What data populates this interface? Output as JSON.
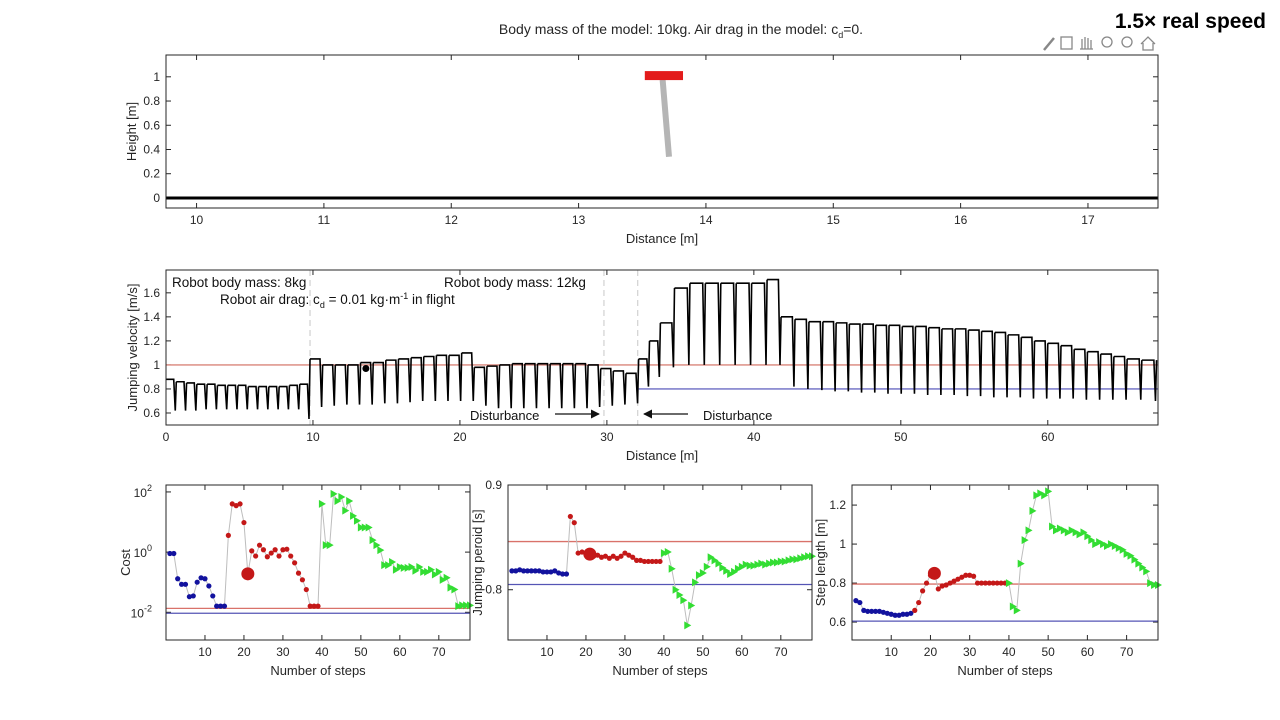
{
  "speed_label": "1.5× real speed",
  "chart_data": [
    {
      "type": "animation",
      "title": [
        "Body mass of the model: 10kg. Air drag in the model: c",
        "d",
        "=0."
      ],
      "xlabel": "Distance [m]",
      "ylabel": "Height [m]",
      "xlim": [
        9.76,
        17.55
      ],
      "ylim": [
        -0.083,
        1.18
      ],
      "xticks": [
        10,
        11,
        12,
        13,
        14,
        15,
        16,
        17
      ],
      "yticks": [
        0,
        0.2,
        0.4,
        0.6,
        0.8,
        1
      ],
      "ground": 0,
      "ground_color": "#000000",
      "body": {
        "x": [
          13.52,
          13.82
        ],
        "y": 1.01,
        "color": "#e31b1b"
      },
      "leg": {
        "x": [
          13.66,
          13.71
        ],
        "y": [
          0.975,
          0.34
        ],
        "color": "#b5b5b5"
      }
    },
    {
      "type": "sawtooth",
      "xlabel": "Distance [m]",
      "ylabel": "Jumping velocity [m/s]",
      "xlim": [
        0,
        67.5
      ],
      "ylim": [
        0.5,
        1.79
      ],
      "xticks": [
        0,
        10,
        20,
        30,
        40,
        50,
        60
      ],
      "yticks": [
        0.6,
        0.8,
        1,
        1.2,
        1.4,
        1.6
      ],
      "color": "#000000",
      "step_edges": [
        0,
        0.7,
        1.4,
        2.1,
        2.8,
        3.5,
        4.2,
        4.9,
        5.6,
        6.3,
        7.0,
        7.7,
        8.4,
        9.1,
        9.8,
        10.66,
        11.52,
        12.38,
        13.24,
        14.1,
        14.96,
        15.82,
        16.68,
        17.54,
        18.4,
        19.26,
        20.12,
        20.98,
        21.84,
        22.7,
        23.56,
        24.42,
        25.28,
        26.14,
        27.0,
        27.86,
        28.72,
        29.58,
        30.44,
        31.3,
        32.16,
        32.9,
        33.64,
        34.6,
        35.65,
        36.7,
        37.75,
        38.8,
        39.85,
        40.9,
        41.85,
        42.8,
        43.75,
        44.7,
        45.6,
        46.5,
        47.4,
        48.3,
        49.2,
        50.1,
        51.0,
        51.9,
        52.8,
        53.7,
        54.6,
        55.5,
        56.4,
        57.3,
        58.2,
        59.1,
        60.0,
        60.9,
        61.8,
        62.7,
        63.6,
        64.5,
        65.4,
        66.4,
        67.4
      ],
      "peaks": [
        0.88,
        0.86,
        0.85,
        0.84,
        0.84,
        0.83,
        0.83,
        0.83,
        0.82,
        0.82,
        0.82,
        0.82,
        0.83,
        0.84,
        1.05,
        1.0,
        1.0,
        1.0,
        1.02,
        1.02,
        1.04,
        1.05,
        1.06,
        1.07,
        1.08,
        1.08,
        1.1,
        0.98,
        0.99,
        1.0,
        1.01,
        1.01,
        1.01,
        1.01,
        1.01,
        1.01,
        1.0,
        0.97,
        0.95,
        0.93,
        1.05,
        1.2,
        1.35,
        1.64,
        1.68,
        1.68,
        1.68,
        1.68,
        1.68,
        1.71,
        1.4,
        1.38,
        1.36,
        1.36,
        1.35,
        1.34,
        1.34,
        1.33,
        1.33,
        1.32,
        1.32,
        1.31,
        1.3,
        1.3,
        1.29,
        1.28,
        1.27,
        1.25,
        1.23,
        1.2,
        1.18,
        1.16,
        1.13,
        1.11,
        1.09,
        1.07,
        1.05,
        1.04
      ],
      "troughs": [
        0.62,
        0.62,
        0.62,
        0.63,
        0.63,
        0.63,
        0.63,
        0.63,
        0.63,
        0.63,
        0.63,
        0.63,
        0.63,
        0.55,
        0.65,
        0.66,
        0.67,
        0.67,
        0.67,
        0.68,
        0.68,
        0.69,
        0.7,
        0.7,
        0.7,
        0.7,
        0.7,
        0.66,
        0.64,
        0.64,
        0.64,
        0.64,
        0.64,
        0.64,
        0.64,
        0.64,
        0.65,
        0.66,
        0.67,
        0.68,
        0.82,
        0.9,
        0.98,
        1.0,
        1.0,
        1.0,
        1.0,
        1.0,
        1.0,
        1.0,
        0.82,
        0.8,
        0.79,
        0.78,
        0.78,
        0.77,
        0.77,
        0.76,
        0.76,
        0.76,
        0.75,
        0.75,
        0.75,
        0.74,
        0.74,
        0.73,
        0.73,
        0.73,
        0.72,
        0.72,
        0.72,
        0.72,
        0.71,
        0.71,
        0.71,
        0.71,
        0.71,
        0.7
      ],
      "reference_lines": [
        {
          "y": 1,
          "x": [
            0,
            67.5
          ],
          "color": "#d9857a"
        },
        {
          "y": 0.8,
          "x": [
            32.16,
            67.5
          ],
          "color": "#6b6bc4"
        }
      ],
      "event_lines": [
        9.8,
        29.8,
        32.1
      ],
      "event_color": "#c8c8c8",
      "dot": {
        "x": 13.6,
        "y": 0.97
      },
      "annotations": [
        "Robot body mass: 8kg",
        [
          "Robot air drag:  c",
          "d",
          " = 0.01 kg·m",
          "-1",
          " in flight"
        ],
        "Robot body mass: 12kg",
        "Disturbance",
        "Disturbance"
      ]
    },
    {
      "type": "scatter",
      "yscale": "log",
      "xlabel": "Number of steps",
      "ylabel": "Cost",
      "xlim": [
        0,
        78
      ],
      "ylim": [
        0.0012,
        170
      ],
      "xticks": [
        10,
        20,
        30,
        40,
        50,
        60,
        70
      ],
      "yticks": [
        {
          "value": 0.01,
          "label": "10",
          "exponent": "-2"
        },
        {
          "value": 1,
          "label": "10",
          "exponent": "0"
        },
        {
          "value": 100,
          "label": "10",
          "exponent": "2"
        }
      ],
      "connector_color": "#bdbdbd",
      "highlight_x": 21,
      "reference_lines": [
        {
          "y": 0.0135,
          "color": "#d9726a"
        },
        {
          "y": 0.0093,
          "color": "#5555b5"
        }
      ],
      "series": [
        {
          "color": "#12129e",
          "marker": "circle",
          "x": [
            1,
            2,
            3,
            4,
            5,
            6,
            7,
            8,
            9,
            10,
            11,
            12,
            13,
            14,
            15
          ],
          "values": [
            0.9,
            0.9,
            0.13,
            0.085,
            0.085,
            0.033,
            0.035,
            0.1,
            0.14,
            0.13,
            0.075,
            0.035,
            0.016,
            0.016,
            0.016
          ]
        },
        {
          "color": "#c41818",
          "marker": "circle",
          "x": [
            16,
            17,
            18,
            19,
            20,
            21,
            22,
            23,
            24,
            25,
            26,
            27,
            28,
            29,
            30,
            31,
            32,
            33,
            34,
            35,
            36,
            37,
            38,
            39
          ],
          "values": [
            3.6,
            40,
            35,
            40,
            9.6,
            0.19,
            1.1,
            0.74,
            1.7,
            1.2,
            0.7,
            0.93,
            1.2,
            0.74,
            1.2,
            1.25,
            0.74,
            0.44,
            0.2,
            0.12,
            0.057,
            0.016,
            0.016,
            0.016
          ]
        },
        {
          "color": "#33dd33",
          "marker": "triangle",
          "x": [
            40,
            41,
            42,
            43,
            44,
            45,
            46,
            47,
            48,
            49,
            50,
            51,
            52,
            53,
            54,
            55,
            56,
            57,
            58,
            59,
            60,
            61,
            62,
            63,
            64,
            65,
            66,
            67,
            68,
            69,
            70,
            71,
            72,
            73,
            74,
            75,
            76,
            77,
            78
          ],
          "values": [
            40,
            1.7,
            1.7,
            86,
            50,
            68,
            24,
            50,
            16,
            11,
            6.6,
            6.6,
            6.6,
            2.5,
            1.7,
            1.16,
            0.37,
            0.37,
            0.47,
            0.26,
            0.32,
            0.3,
            0.3,
            0.32,
            0.24,
            0.32,
            0.22,
            0.22,
            0.26,
            0.18,
            0.22,
            0.12,
            0.14,
            0.066,
            0.057,
            0.016,
            0.017,
            0.017,
            0.017
          ]
        }
      ]
    },
    {
      "type": "scatter",
      "xlabel": "Number of steps",
      "ylabel": "Jumping peroid [s]",
      "xlim": [
        0,
        78
      ],
      "ylim": [
        0.752,
        0.9
      ],
      "xticks": [
        10,
        20,
        30,
        40,
        50,
        60,
        70
      ],
      "yticks": [
        0.8,
        0.9
      ],
      "connector_color": "#bdbdbd",
      "highlight_x": 21,
      "reference_lines": [
        {
          "y": 0.846,
          "color": "#d9726a"
        },
        {
          "y": 0.805,
          "color": "#5555b5"
        }
      ],
      "series": [
        {
          "color": "#12129e",
          "marker": "circle",
          "x": [
            1,
            2,
            3,
            4,
            5,
            6,
            7,
            8,
            9,
            10,
            11,
            12,
            13,
            14,
            15
          ],
          "values": [
            0.818,
            0.818,
            0.819,
            0.818,
            0.818,
            0.818,
            0.818,
            0.818,
            0.817,
            0.817,
            0.817,
            0.818,
            0.816,
            0.815,
            0.815
          ]
        },
        {
          "color": "#c41818",
          "marker": "circle",
          "x": [
            16,
            17,
            18,
            19,
            20,
            21,
            22,
            23,
            24,
            25,
            26,
            27,
            28,
            29,
            30,
            31,
            32,
            33,
            34,
            35,
            36,
            37,
            38,
            39
          ],
          "values": [
            0.87,
            0.864,
            0.835,
            0.836,
            0.834,
            0.834,
            0.832,
            0.833,
            0.831,
            0.832,
            0.83,
            0.832,
            0.83,
            0.832,
            0.835,
            0.833,
            0.831,
            0.828,
            0.828,
            0.827,
            0.827,
            0.827,
            0.827,
            0.827
          ]
        },
        {
          "color": "#33dd33",
          "marker": "triangle",
          "x": [
            40,
            41,
            42,
            43,
            44,
            45,
            46,
            47,
            48,
            49,
            50,
            51,
            52,
            53,
            54,
            55,
            56,
            57,
            58,
            59,
            60,
            61,
            62,
            63,
            64,
            65,
            66,
            67,
            68,
            69,
            70,
            71,
            72,
            73,
            74,
            75,
            76,
            77,
            78
          ],
          "values": [
            0.835,
            0.836,
            0.82,
            0.8,
            0.795,
            0.79,
            0.766,
            0.785,
            0.807,
            0.814,
            0.816,
            0.822,
            0.831,
            0.828,
            0.825,
            0.821,
            0.818,
            0.815,
            0.817,
            0.82,
            0.822,
            0.824,
            0.823,
            0.823,
            0.824,
            0.825,
            0.824,
            0.825,
            0.826,
            0.826,
            0.827,
            0.827,
            0.828,
            0.829,
            0.829,
            0.83,
            0.831,
            0.832,
            0.832
          ]
        }
      ]
    },
    {
      "type": "scatter",
      "xlabel": "Number of steps",
      "ylabel": "Step length [m]",
      "xlim": [
        0,
        78
      ],
      "ylim": [
        0.508,
        1.303
      ],
      "xticks": [
        10,
        20,
        30,
        40,
        50,
        60,
        70
      ],
      "yticks": [
        0.6,
        0.8,
        1,
        1.2
      ],
      "connector_color": "#bdbdbd",
      "highlight_x": 21,
      "reference_lines": [
        {
          "y": 0.795,
          "color": "#d9726a"
        },
        {
          "y": 0.605,
          "color": "#5555b5"
        }
      ],
      "series": [
        {
          "color": "#12129e",
          "marker": "circle",
          "x": [
            1,
            2,
            3,
            4,
            5,
            6,
            7,
            8,
            9,
            10,
            11,
            12,
            13,
            14,
            15
          ],
          "values": [
            0.71,
            0.7,
            0.66,
            0.655,
            0.655,
            0.655,
            0.655,
            0.65,
            0.645,
            0.64,
            0.635,
            0.635,
            0.64,
            0.64,
            0.645
          ]
        },
        {
          "color": "#c41818",
          "marker": "circle",
          "x": [
            16,
            17,
            18,
            19,
            20,
            21,
            22,
            23,
            24,
            25,
            26,
            27,
            28,
            29,
            30,
            31,
            32,
            33,
            34,
            35,
            36,
            37,
            38,
            39
          ],
          "values": [
            0.66,
            0.7,
            0.76,
            0.8,
            0.84,
            0.85,
            0.77,
            0.785,
            0.79,
            0.8,
            0.81,
            0.82,
            0.83,
            0.84,
            0.84,
            0.835,
            0.8,
            0.8,
            0.8,
            0.8,
            0.8,
            0.8,
            0.8,
            0.8
          ]
        },
        {
          "color": "#33dd33",
          "marker": "triangle",
          "x": [
            40,
            41,
            42,
            43,
            44,
            45,
            46,
            47,
            48,
            49,
            50,
            51,
            52,
            53,
            54,
            55,
            56,
            57,
            58,
            59,
            60,
            61,
            62,
            63,
            64,
            65,
            66,
            67,
            68,
            69,
            70,
            71,
            72,
            73,
            74,
            75,
            76,
            77,
            78
          ],
          "values": [
            0.8,
            0.68,
            0.66,
            0.9,
            1.02,
            1.07,
            1.17,
            1.25,
            1.26,
            1.25,
            1.27,
            1.09,
            1.07,
            1.08,
            1.07,
            1.06,
            1.07,
            1.06,
            1.05,
            1.06,
            1.04,
            1.02,
            1.0,
            1.01,
            1.0,
            0.99,
            1.0,
            0.99,
            0.98,
            0.97,
            0.95,
            0.94,
            0.92,
            0.9,
            0.88,
            0.86,
            0.8,
            0.79,
            0.79
          ]
        }
      ]
    }
  ]
}
